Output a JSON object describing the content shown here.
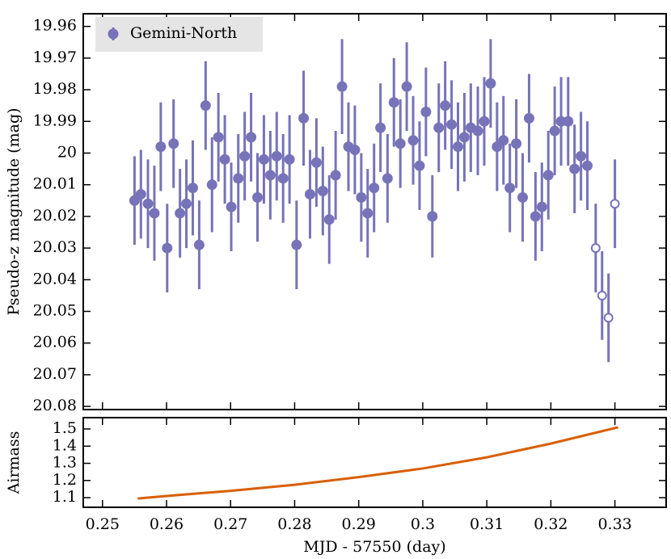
{
  "chart_data": [
    {
      "type": "scatter",
      "ylabel": "Pseudo-z magnitude (mag)",
      "xlim": [
        0.247,
        0.338
      ],
      "xticks": [
        0.25,
        0.26,
        0.27,
        0.28,
        0.29,
        0.3,
        0.31,
        0.32,
        0.33
      ],
      "ylim": [
        20.081,
        19.956
      ],
      "yticks": [
        19.96,
        19.97,
        19.98,
        19.99,
        20,
        20.01,
        20.02,
        20.03,
        20.04,
        20.05,
        20.06,
        20.07,
        20.08
      ],
      "legend": "upper left",
      "series": [
        {
          "name": "Gemini-North",
          "color": "#7773b8",
          "x": [
            0.255,
            0.256,
            0.2571,
            0.2581,
            0.2591,
            0.2601,
            0.2611,
            0.2621,
            0.2631,
            0.2641,
            0.2651,
            0.2661,
            0.2671,
            0.2681,
            0.2691,
            0.2701,
            0.2712,
            0.2722,
            0.2732,
            0.2742,
            0.2752,
            0.2762,
            0.2772,
            0.2782,
            0.2792,
            0.2803,
            0.2814,
            0.2824,
            0.2834,
            0.2844,
            0.2854,
            0.2864,
            0.2874,
            0.2884,
            0.2894,
            0.2904,
            0.2914,
            0.2924,
            0.2934,
            0.2945,
            0.2955,
            0.2965,
            0.2975,
            0.2985,
            0.2995,
            0.3005,
            0.3015,
            0.3025,
            0.3035,
            0.3045,
            0.3055,
            0.3065,
            0.3075,
            0.3086,
            0.3096,
            0.3106,
            0.3116,
            0.3126,
            0.3136,
            0.3146,
            0.3156,
            0.3166,
            0.3176,
            0.3186,
            0.3196,
            0.3206,
            0.3216,
            0.3227,
            0.3237,
            0.3247,
            0.3257,
            0.327,
            0.328,
            0.329,
            0.33
          ],
          "values": [
            20.015,
            20.013,
            20.016,
            20.019,
            19.998,
            20.03,
            19.997,
            20.019,
            20.016,
            20.011,
            20.029,
            19.985,
            20.01,
            19.995,
            20.002,
            20.017,
            20.008,
            20.001,
            19.995,
            20.014,
            20.002,
            20.007,
            20.001,
            20.008,
            20.002,
            20.029,
            19.989,
            20.013,
            20.003,
            20.012,
            20.021,
            20.007,
            19.979,
            19.998,
            19.999,
            20.014,
            20.019,
            20.011,
            19.992,
            20.008,
            19.984,
            19.997,
            19.979,
            19.996,
            20.004,
            19.987,
            20.02,
            19.992,
            19.985,
            19.991,
            19.998,
            19.995,
            19.992,
            19.993,
            19.99,
            19.978,
            19.998,
            19.996,
            20.011,
            19.997,
            20.014,
            19.989,
            20.02,
            20.017,
            20.007,
            19.993,
            19.99,
            19.99,
            20.005,
            20.001,
            20.004,
            20.03,
            20.045,
            20.052,
            20.016
          ],
          "errors": [
            0.014,
            0.014,
            0.014,
            0.015,
            0.014,
            0.014,
            0.014,
            0.014,
            0.014,
            0.015,
            0.014,
            0.014,
            0.015,
            0.014,
            0.014,
            0.014,
            0.014,
            0.014,
            0.014,
            0.014,
            0.014,
            0.014,
            0.014,
            0.014,
            0.014,
            0.014,
            0.015,
            0.014,
            0.014,
            0.014,
            0.014,
            0.014,
            0.015,
            0.014,
            0.014,
            0.014,
            0.014,
            0.014,
            0.014,
            0.014,
            0.014,
            0.014,
            0.014,
            0.014,
            0.014,
            0.014,
            0.013,
            0.014,
            0.014,
            0.014,
            0.014,
            0.014,
            0.014,
            0.014,
            0.014,
            0.014,
            0.014,
            0.014,
            0.014,
            0.014,
            0.014,
            0.014,
            0.014,
            0.014,
            0.014,
            0.014,
            0.014,
            0.014,
            0.014,
            0.014,
            0.014,
            0.014,
            0.014,
            0.014,
            0.014
          ],
          "filled": [
            true,
            true,
            true,
            true,
            true,
            true,
            true,
            true,
            true,
            true,
            true,
            true,
            true,
            true,
            true,
            true,
            true,
            true,
            true,
            true,
            true,
            true,
            true,
            true,
            true,
            true,
            true,
            true,
            true,
            true,
            true,
            true,
            true,
            true,
            true,
            true,
            true,
            true,
            true,
            true,
            true,
            true,
            true,
            true,
            true,
            true,
            true,
            true,
            true,
            true,
            true,
            true,
            true,
            true,
            true,
            true,
            true,
            true,
            true,
            true,
            true,
            true,
            true,
            true,
            true,
            true,
            true,
            true,
            true,
            true,
            true,
            false,
            false,
            false,
            false
          ]
        }
      ]
    },
    {
      "type": "line",
      "xlabel": "MJD - 57550 (day)",
      "ylabel": "Airmass",
      "xlim": [
        0.247,
        0.338
      ],
      "xticks": [
        0.25,
        0.26,
        0.27,
        0.28,
        0.29,
        0.3,
        0.31,
        0.32,
        0.33
      ],
      "ylim": [
        1.044,
        1.566
      ],
      "yticks": [
        1.1,
        1.2,
        1.3,
        1.4,
        1.5
      ],
      "color": "#d95f02",
      "x": [
        0.2555,
        0.26,
        0.27,
        0.28,
        0.29,
        0.3,
        0.31,
        0.32,
        0.3305
      ],
      "values": [
        1.095,
        1.11,
        1.14,
        1.175,
        1.22,
        1.27,
        1.335,
        1.415,
        1.51
      ]
    }
  ]
}
